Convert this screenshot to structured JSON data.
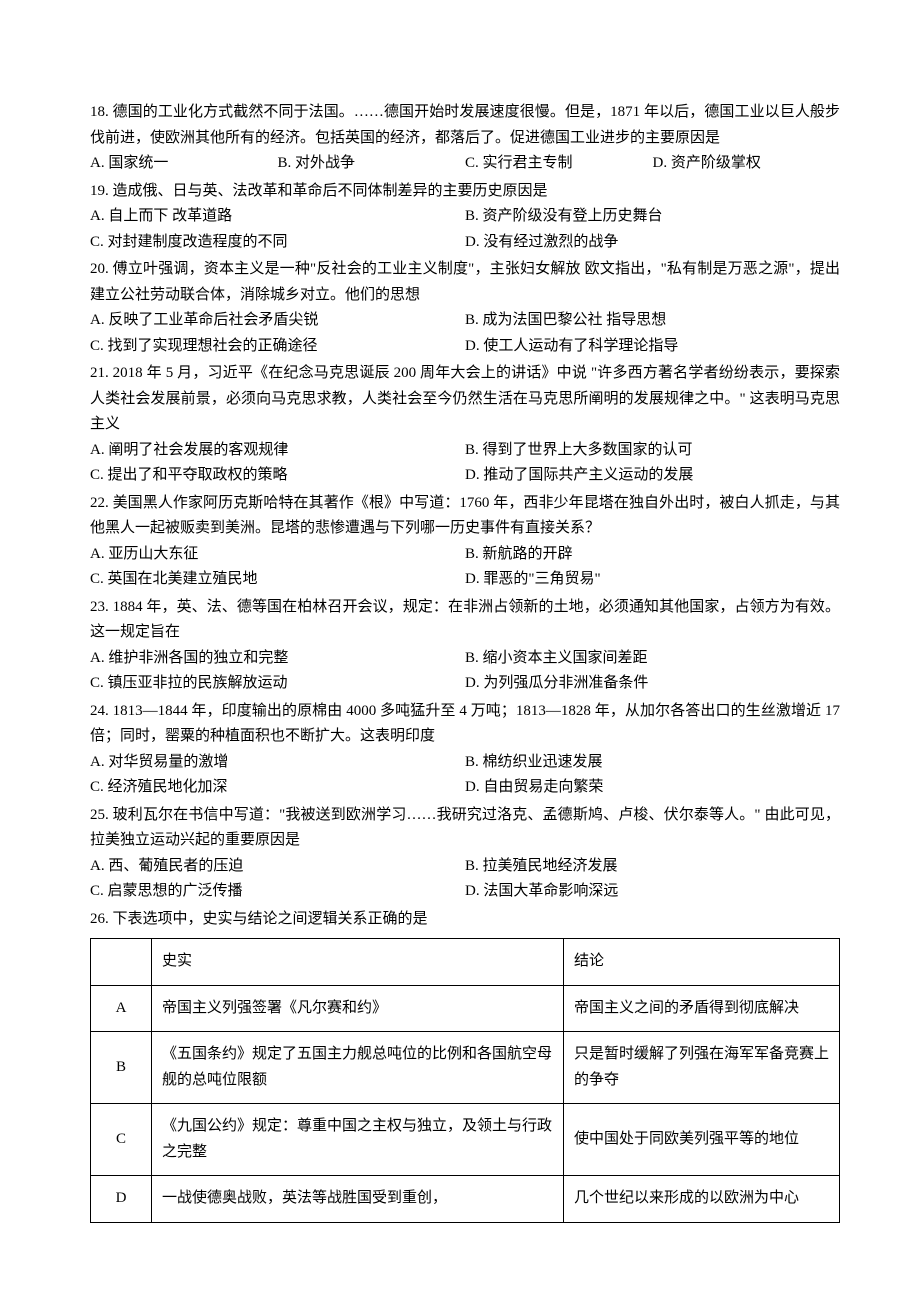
{
  "q18": {
    "stem": "18. 德国的工业化方式截然不同于法国。……德国开始时发展速度很慢。但是，1871 年以后，德国工业以巨人般步伐前进，使欧洲其他所有的经济。包括英国的经济，都落后了。促进德国工业进步的主要原因是",
    "A": "A. 国家统一",
    "B": "B. 对外战争",
    "C": "C. 实行君主专制",
    "D": "D. 资产阶级掌权"
  },
  "q19": {
    "stem": "19. 造成俄、日与英、法改革和革命后不同体制差异的主要历史原因是",
    "A": "A. 自上而下 改革道路",
    "B": "B. 资产阶级没有登上历史舞台",
    "C": "C. 对封建制度改造程度的不同",
    "D": "D. 没有经过激烈的战争"
  },
  "q20": {
    "stem": "20. 傅立叶强调，资本主义是一种\"反社会的工业主义制度\"，主张妇女解放 欧文指出，\"私有制是万恶之源\"，提出建立公社劳动联合体，消除城乡对立。他们的思想",
    "A": "A. 反映了工业革命后社会矛盾尖锐",
    "B": "B. 成为法国巴黎公社 指导思想",
    "C": "C. 找到了实现理想社会的正确途径",
    "D": "D. 使工人运动有了科学理论指导"
  },
  "q21": {
    "stem": "21. 2018 年 5 月，习近平《在纪念马克思诞辰 200 周年大会上的讲话》中说 \"许多西方著名学者纷纷表示，要探索人类社会发展前景，必须向马克思求教，人类社会至今仍然生活在马克思所阐明的发展规律之中。\" 这表明马克思主义",
    "A": "A. 阐明了社会发展的客观规律",
    "B": "B. 得到了世界上大多数国家的认可",
    "C": "C. 提出了和平夺取政权的策略",
    "D": "D. 推动了国际共产主义运动的发展"
  },
  "q22": {
    "stem": "22. 美国黑人作家阿历克斯哈特在其著作《根》中写道：1760 年，西非少年昆塔在独自外出时，被白人抓走，与其他黑人一起被贩卖到美洲。昆塔的悲惨遭遇与下列哪一历史事件有直接关系？",
    "A": "A. 亚历山大东征",
    "B": "B. 新航路的开辟",
    "C": "C. 英国在北美建立殖民地",
    "D": "D. 罪恶的\"三角贸易\""
  },
  "q23": {
    "stem": "23. 1884 年，英、法、德等国在柏林召开会议，规定：在非洲占领新的土地，必须通知其他国家，占领方为有效。这一规定旨在",
    "A": "A. 维护非洲各国的独立和完整",
    "B": "B. 缩小资本主义国家间差距",
    "C": "C. 镇压亚非拉的民族解放运动",
    "D": "D. 为列强瓜分非洲准备条件"
  },
  "q24": {
    "stem": "24. 1813—1844 年，印度输出的原棉由 4000 多吨猛升至 4 万吨；1813—1828 年，从加尔各答出口的生丝激增近 17 倍；同时，罂粟的种植面积也不断扩大。这表明印度",
    "A": "A. 对华贸易量的激增",
    "B": "B. 棉纺织业迅速发展",
    "C": "C. 经济殖民地化加深",
    "D": "D. 自由贸易走向繁荣"
  },
  "q25": {
    "stem": "25. 玻利瓦尔在书信中写道：\"我被送到欧洲学习……我研究过洛克、孟德斯鸠、卢梭、伏尔泰等人。\" 由此可见，拉美独立运动兴起的重要原因是",
    "A": "A. 西、葡殖民者的压迫",
    "B": "B. 拉美殖民地经济发展",
    "C": "C. 启蒙思想的广泛传播",
    "D": "D. 法国大革命影响深远"
  },
  "q26": {
    "stem": "26. 下表选项中，史实与结论之间逻辑关系正确的是",
    "table": {
      "headers": {
        "fact": "史实",
        "conclusion": "结论"
      },
      "rows": [
        {
          "letter": "A",
          "fact": "帝国主义列强签署《凡尔赛和约》",
          "conclusion": "帝国主义之间的矛盾得到彻底解决"
        },
        {
          "letter": "B",
          "fact": "《五国条约》规定了五国主力舰总吨位的比例和各国航空母舰的总吨位限额",
          "conclusion": "只是暂时缓解了列强在海军军备竞赛上的争夺"
        },
        {
          "letter": "C",
          "fact": "《九国公约》规定：尊重中国之主权与独立，及领土与行政之完整",
          "conclusion": "使中国处于同欧美列强平等的地位"
        },
        {
          "letter": "D",
          "fact": "一战使德奥战败，英法等战胜国受到重创，",
          "conclusion": "几个世纪以来形成的以欧洲为中心"
        }
      ]
    }
  }
}
